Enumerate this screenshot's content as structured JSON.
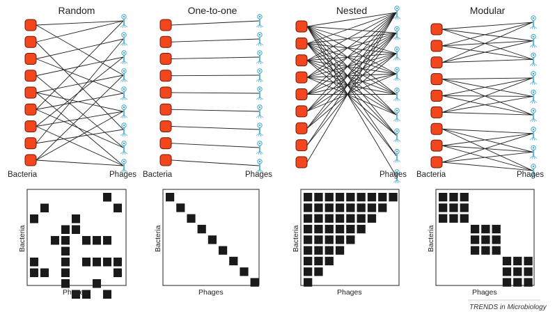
{
  "figure_labels": {
    "bacteria": "Bacteria",
    "phages": "Phages",
    "credit": "TRENDS in Microbiology"
  },
  "colors": {
    "bacterium_fill": "#f2461f",
    "bacterium_stroke": "#6a1a08",
    "phage_color": "#3aa8c8",
    "edge": "#222222",
    "cell": "#1a1a1a"
  },
  "icons": {
    "bacterium": "bacterium-icon",
    "phage": "phage-icon"
  },
  "panels": [
    {
      "id": "random",
      "title": "Random",
      "n_bacteria": 9,
      "n_phages": 9,
      "edges": [
        [
          0,
          0
        ],
        [
          0,
          3
        ],
        [
          1,
          0
        ],
        [
          1,
          6
        ],
        [
          2,
          1
        ],
        [
          2,
          4
        ],
        [
          3,
          2
        ],
        [
          3,
          7
        ],
        [
          4,
          3
        ],
        [
          4,
          5
        ],
        [
          4,
          8
        ],
        [
          5,
          0
        ],
        [
          5,
          4
        ],
        [
          5,
          7
        ],
        [
          6,
          2
        ],
        [
          6,
          5
        ],
        [
          6,
          8
        ],
        [
          7,
          1
        ],
        [
          7,
          6
        ],
        [
          8,
          3
        ],
        [
          8,
          5
        ],
        [
          8,
          8
        ]
      ],
      "matrix": [
        [
          7,
          0
        ],
        [
          1,
          1
        ],
        [
          8,
          1
        ],
        [
          0,
          2
        ],
        [
          4,
          2
        ],
        [
          3,
          3
        ],
        [
          4,
          3
        ],
        [
          2,
          4
        ],
        [
          3,
          4
        ],
        [
          5,
          4
        ],
        [
          6,
          4
        ],
        [
          7,
          4
        ],
        [
          3,
          5
        ],
        [
          3,
          6
        ],
        [
          5,
          6
        ],
        [
          6,
          6
        ],
        [
          7,
          6
        ],
        [
          8,
          6
        ],
        [
          0,
          6
        ],
        [
          0,
          7
        ],
        [
          1,
          7
        ],
        [
          3,
          7
        ],
        [
          8,
          7
        ],
        [
          3,
          8
        ],
        [
          6,
          8
        ],
        [
          4,
          9
        ],
        [
          5,
          9
        ],
        [
          7,
          9
        ]
      ]
    },
    {
      "id": "one-to-one",
      "title": "One-to-one",
      "n_bacteria": 9,
      "n_phages": 9,
      "edges": [
        [
          0,
          0
        ],
        [
          1,
          1
        ],
        [
          2,
          2
        ],
        [
          3,
          3
        ],
        [
          4,
          4
        ],
        [
          5,
          5
        ],
        [
          6,
          6
        ],
        [
          7,
          7
        ],
        [
          8,
          8
        ]
      ],
      "matrix": [
        [
          0,
          0
        ],
        [
          1,
          1
        ],
        [
          2,
          2
        ],
        [
          3,
          3
        ],
        [
          4,
          4
        ],
        [
          5,
          5
        ],
        [
          6,
          6
        ],
        [
          7,
          7
        ],
        [
          8,
          8
        ]
      ]
    },
    {
      "id": "nested",
      "title": "Nested",
      "n_bacteria": 9,
      "n_phages": 9,
      "edges": "nested",
      "matrix": "nested"
    },
    {
      "id": "modular",
      "title": "Modular",
      "n_bacteria": 9,
      "n_phages": 9,
      "edges": "modular",
      "matrix": "modular"
    }
  ]
}
